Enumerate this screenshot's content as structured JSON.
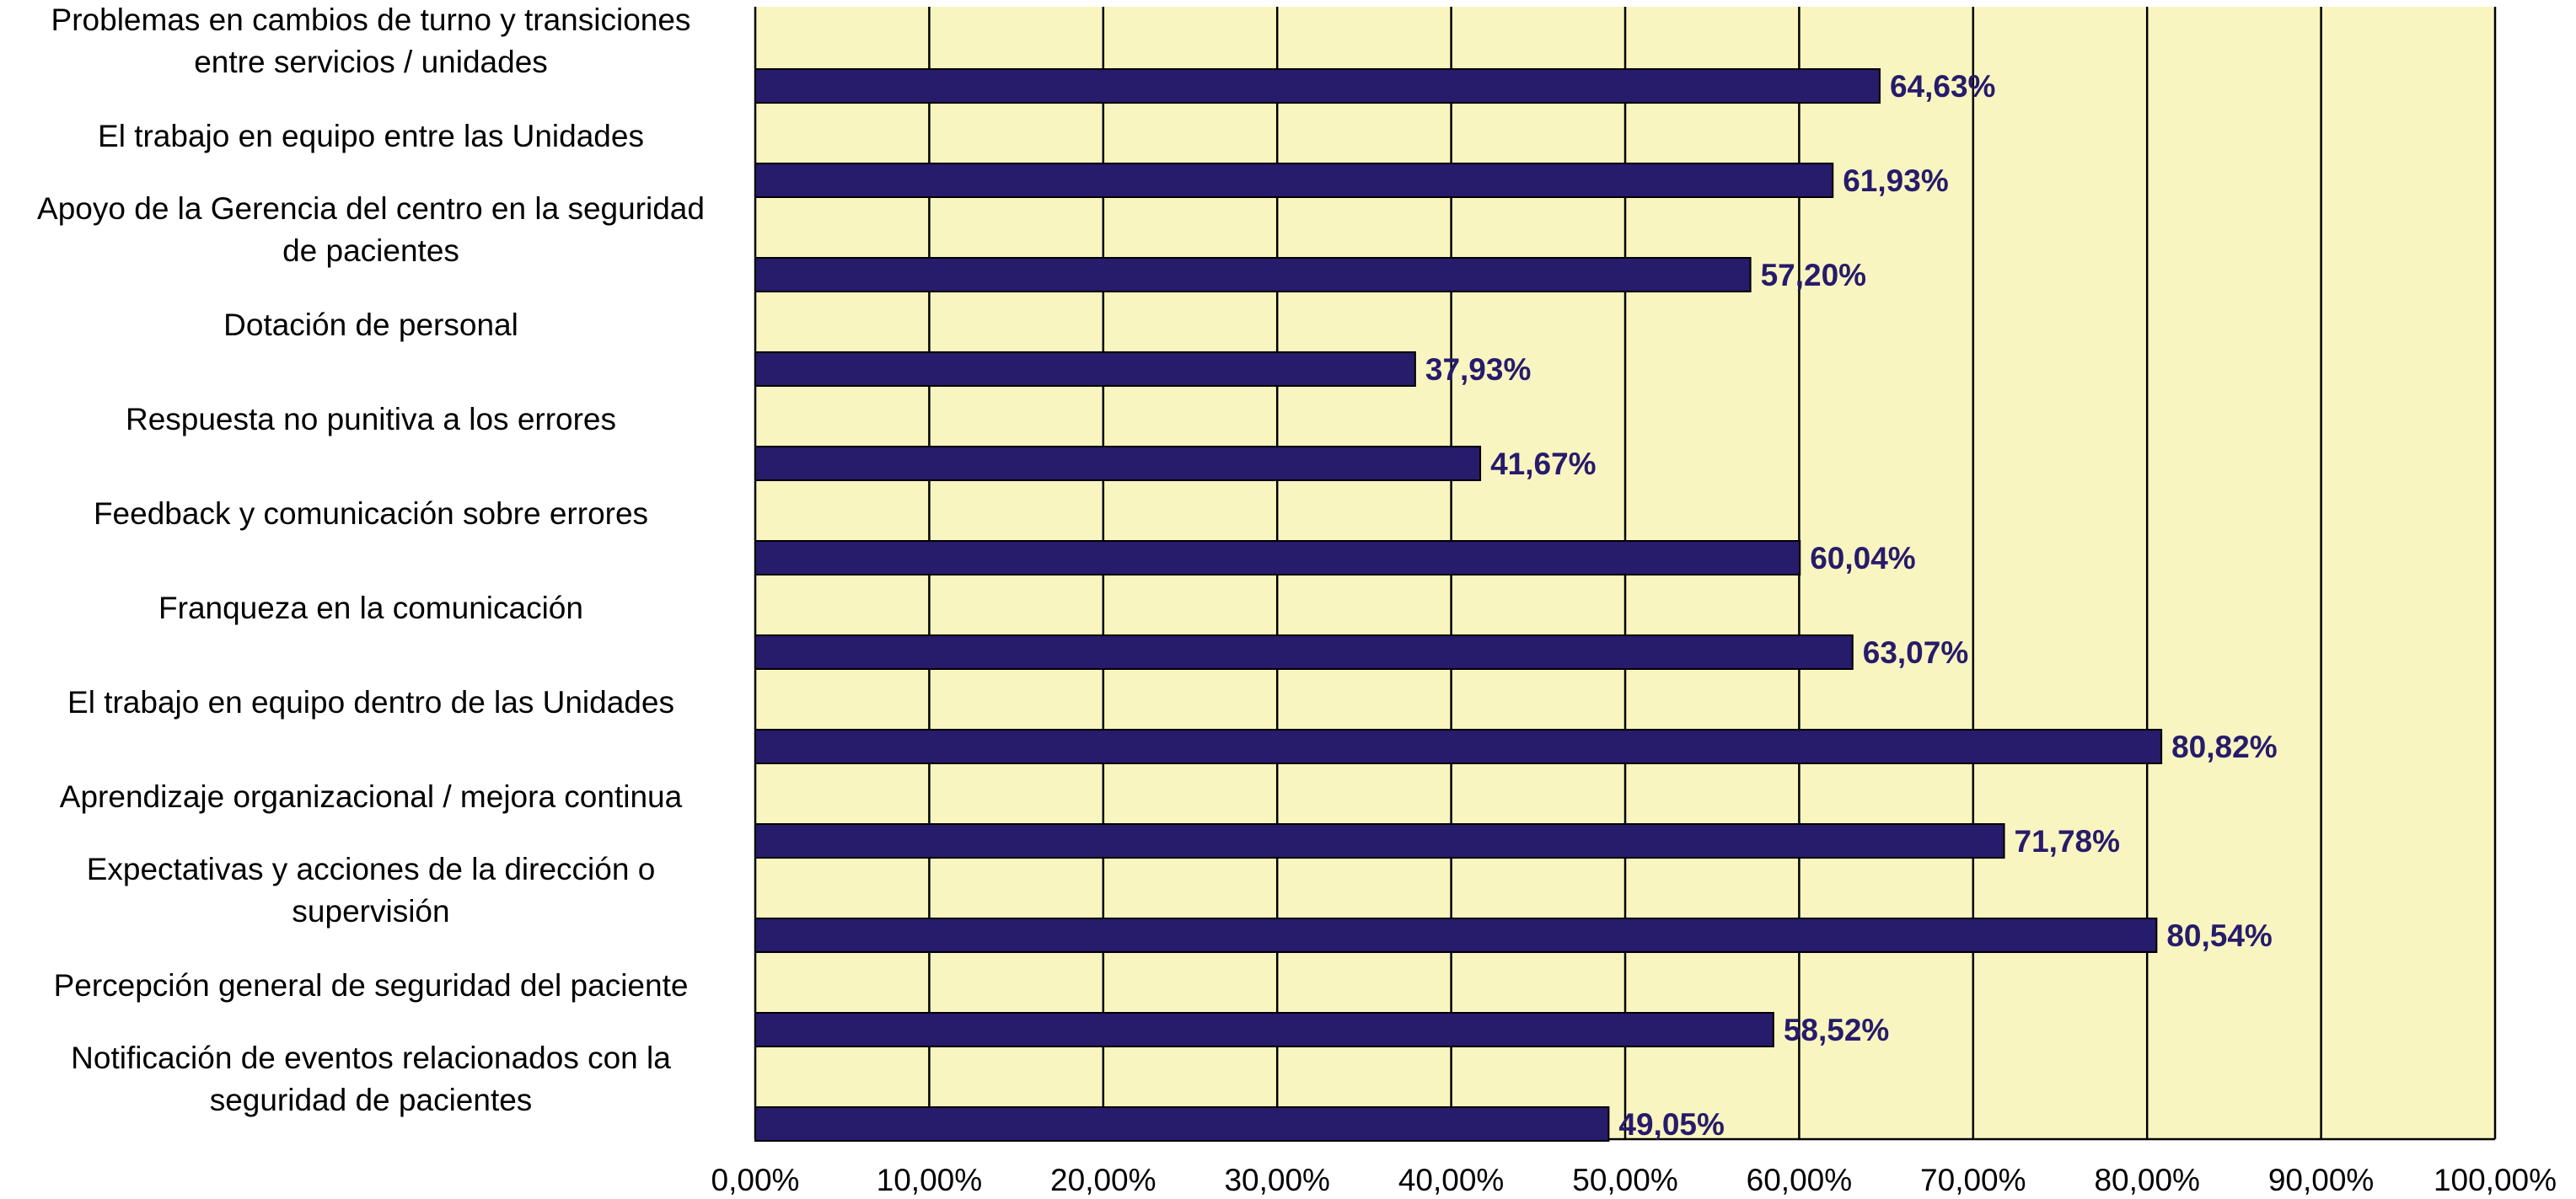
{
  "chart_data": {
    "type": "bar",
    "orientation": "horizontal",
    "categories": [
      "Problemas en cambios de turno y transiciones entre servicios / unidades",
      "El trabajo en equipo entre las Unidades",
      "Apoyo de la Gerencia del centro en la seguridad de pacientes",
      "Dotación de personal",
      "Respuesta no punitiva a los errores",
      "Feedback y comunicación sobre errores",
      "Franqueza en la comunicación",
      "El trabajo en equipo dentro de las Unidades",
      "Aprendizaje organizacional / mejora continua",
      "Expectativas y acciones de la dirección o supervisión",
      "Percepción general de seguridad del paciente",
      "Notificación de eventos relacionados con la seguridad de pacientes"
    ],
    "category_lines": [
      [
        "Problemas en cambios de turno y transiciones",
        "entre servicios / unidades"
      ],
      [
        "El trabajo en equipo entre las Unidades"
      ],
      [
        "Apoyo de la Gerencia del centro en la seguridad",
        "de pacientes"
      ],
      [
        "Dotación de personal"
      ],
      [
        "Respuesta no punitiva a los errores"
      ],
      [
        "Feedback y comunicación sobre errores"
      ],
      [
        "Franqueza en la comunicación"
      ],
      [
        "El trabajo en equipo dentro de las Unidades"
      ],
      [
        "Aprendizaje organizacional / mejora continua"
      ],
      [
        "Expectativas y acciones de la dirección o",
        "supervisión"
      ],
      [
        "Percepción general de seguridad del paciente"
      ],
      [
        "Notificación de eventos relacionados con la",
        "seguridad de pacientes"
      ]
    ],
    "values": [
      64.63,
      61.93,
      57.2,
      37.93,
      41.67,
      60.04,
      63.07,
      80.82,
      71.78,
      80.54,
      58.52,
      49.05
    ],
    "data_labels": [
      "64,63%",
      "61,93%",
      "57,20%",
      "37,93%",
      "41,67%",
      "60,04%",
      "63,07%",
      "80,82%",
      "71,78%",
      "80,54%",
      "58,52%",
      "49,05%"
    ],
    "x_ticks": [
      "0,00%",
      "10,00%",
      "20,00%",
      "30,00%",
      "40,00%",
      "50,00%",
      "60,00%",
      "70,00%",
      "80,00%",
      "90,00%",
      "100,00%"
    ],
    "xlim": [
      0,
      100
    ],
    "title": "",
    "xlabel": "",
    "ylabel": "",
    "grid": "vertical",
    "legend": "none",
    "colors": {
      "bar": "#271b6b",
      "bar_border": "#000000",
      "plot_background": "#f9f5c1",
      "grid": "#000000",
      "data_label": "#271b6b"
    }
  }
}
